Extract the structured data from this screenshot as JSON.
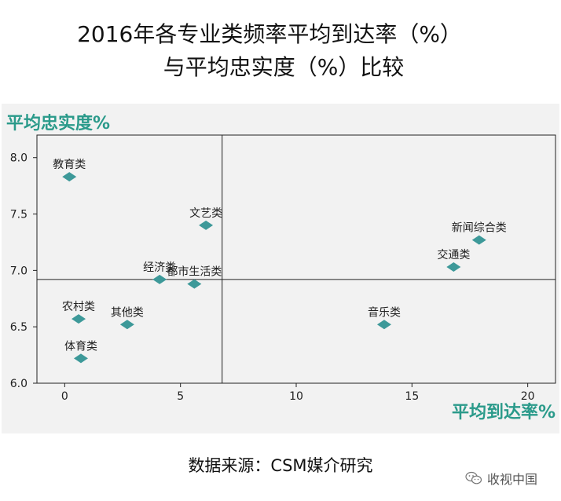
{
  "title": {
    "line1": "2016年各专业类频率平均到达率（%）",
    "line2": "与平均忠实度（%）比较"
  },
  "source": "数据来源：CSM媒介研究",
  "watermark": {
    "text": "收视中国",
    "icon": "wechat-icon"
  },
  "chart_data": {
    "type": "scatter",
    "xlabel": "平均到达率%",
    "ylabel": "平均忠实度%",
    "xlim": [
      -1.2,
      21.2
    ],
    "ylim": [
      6.0,
      8.2
    ],
    "xticks": [
      0,
      5,
      10,
      15,
      20
    ],
    "yticks": [
      6.0,
      6.5,
      7.0,
      7.5,
      8.0
    ],
    "ytick_labels": [
      "6.0",
      "6.5",
      "7.0",
      "7.5",
      "8.0"
    ],
    "reference_lines": {
      "x": 6.8,
      "y": 6.92
    },
    "marker_color": "#3d9999",
    "label_color": "#2a9a8a",
    "points": [
      {
        "name": "教育类",
        "x": 0.2,
        "y": 7.83
      },
      {
        "name": "文艺类",
        "x": 6.1,
        "y": 7.4
      },
      {
        "name": "新闻综合类",
        "x": 17.9,
        "y": 7.27
      },
      {
        "name": "交通类",
        "x": 16.8,
        "y": 7.03
      },
      {
        "name": "经济类",
        "x": 4.1,
        "y": 6.92
      },
      {
        "name": "都市生活类",
        "x": 5.6,
        "y": 6.88
      },
      {
        "name": "农村类",
        "x": 0.6,
        "y": 6.57
      },
      {
        "name": "其他类",
        "x": 2.7,
        "y": 6.52
      },
      {
        "name": "音乐类",
        "x": 13.8,
        "y": 6.52
      },
      {
        "name": "体育类",
        "x": 0.7,
        "y": 6.22
      }
    ]
  }
}
